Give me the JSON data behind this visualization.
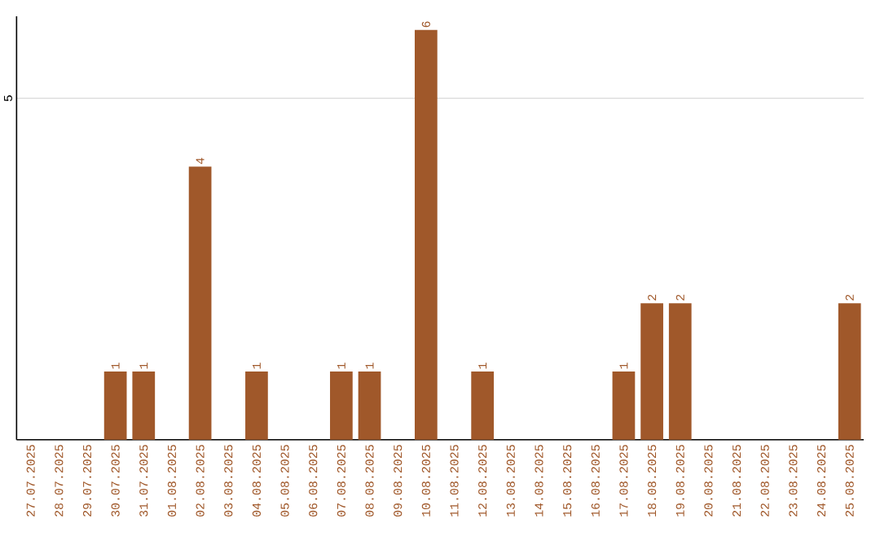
{
  "chart_data": {
    "type": "bar",
    "categories": [
      "27.07.2025",
      "28.07.2025",
      "29.07.2025",
      "30.07.2025",
      "31.07.2025",
      "01.08.2025",
      "02.08.2025",
      "03.08.2025",
      "04.08.2025",
      "05.08.2025",
      "06.08.2025",
      "07.08.2025",
      "08.08.2025",
      "09.08.2025",
      "10.08.2025",
      "11.08.2025",
      "12.08.2025",
      "13.08.2025",
      "14.08.2025",
      "15.08.2025",
      "16.08.2025",
      "17.08.2025",
      "18.08.2025",
      "19.08.2025",
      "20.08.2025",
      "21.08.2025",
      "22.08.2025",
      "23.08.2025",
      "24.08.2025",
      "25.08.2025"
    ],
    "values": [
      0,
      0,
      0,
      1,
      1,
      0,
      4,
      0,
      1,
      0,
      0,
      1,
      1,
      0,
      6,
      0,
      1,
      0,
      0,
      0,
      0,
      1,
      2,
      2,
      0,
      0,
      0,
      0,
      0,
      2
    ],
    "value_labels": [
      null,
      null,
      null,
      "1",
      "1",
      null,
      "4",
      null,
      "1",
      null,
      null,
      "1",
      "1",
      null,
      "6",
      null,
      "1",
      null,
      null,
      null,
      null,
      "1",
      "2",
      "2",
      null,
      null,
      null,
      null,
      null,
      "2"
    ],
    "color": "#a0582a",
    "ylim": [
      0,
      6.2
    ],
    "yticks": [
      5
    ],
    "grid": "y"
  }
}
